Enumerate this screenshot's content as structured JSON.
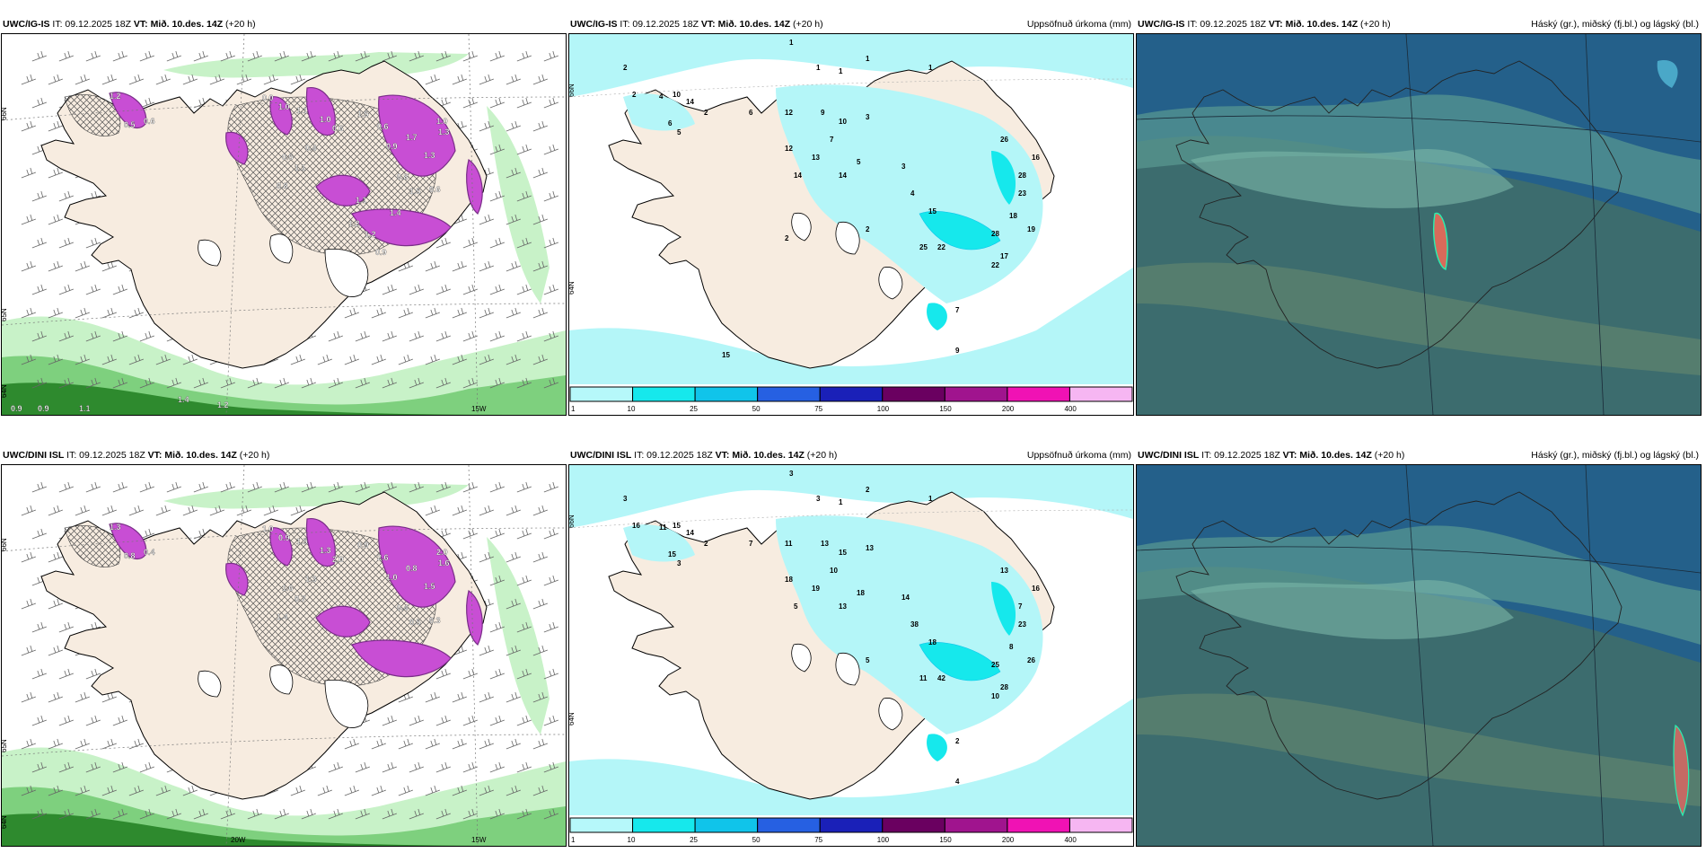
{
  "panels": [
    {
      "id": "p1",
      "header": {
        "source": "UWC/IG-IS",
        "it": "IT: 09.12.2025 18Z",
        "vt": "VT: Mið. 10.des. 14Z",
        "lead": "(+20 h)",
        "right": ""
      },
      "type": "wind",
      "lat_labels": [
        "66N",
        "65N",
        "64N"
      ],
      "lon_labels": [
        "15W"
      ],
      "values": [
        "1.2",
        "0.6",
        "0.5",
        "0.0",
        "1.0",
        "1.1",
        "1.0",
        "0.6",
        "0.5",
        "1.1",
        "0.8",
        "0.4",
        "1.5",
        "0.6",
        "0.9",
        "1.7",
        "1.0",
        "1.3",
        "1.3",
        "0.8",
        "0.6",
        "1.5",
        "1.1",
        "1.4",
        "1.2",
        "1.2",
        "0.9",
        "0.9",
        "0.9",
        "1.1",
        "1.4",
        "1.2"
      ]
    },
    {
      "id": "p2",
      "header": {
        "source": "UWC/IG-IS",
        "it": "IT: 09.12.2025 18Z",
        "vt": "VT: Mið. 10.des. 14Z",
        "lead": "(+20 h)",
        "right": "Uppsöfnuð úrkoma (mm)"
      },
      "type": "precip",
      "lat_labels": [
        "66N",
        "64N"
      ],
      "values": [
        "2",
        "1",
        "1",
        "1",
        "1",
        "1",
        "2",
        "10",
        "14",
        "4",
        "6",
        "5",
        "2",
        "6",
        "12",
        "9",
        "10",
        "3",
        "7",
        "12",
        "13",
        "5",
        "14",
        "14",
        "3",
        "4",
        "15",
        "22",
        "25",
        "23",
        "19",
        "17",
        "28",
        "26",
        "16",
        "28",
        "18",
        "22",
        "7",
        "9",
        "2",
        "15",
        "2"
      ]
    },
    {
      "id": "p3",
      "header": {
        "source": "UWC/IG-IS",
        "it": "IT: 09.12.2025 18Z",
        "vt": "VT: Mið. 10.des. 14Z",
        "lead": "(+20 h)",
        "right": "Háský (gr.), miðský (fj.bl.) og lágský (bl.)"
      },
      "type": "cloud"
    },
    {
      "id": "p4",
      "header": {
        "source": "UWC/DINI ISL",
        "it": "IT: 09.12.2025 18Z",
        "vt": "VT: Mið. 10.des. 14Z",
        "lead": "(+20 h)",
        "right": ""
      },
      "type": "wind",
      "lat_labels": [
        "66N",
        "65N",
        "64N"
      ],
      "lon_labels": [
        "20W",
        "15W"
      ],
      "values": [
        "1.3",
        "0.4",
        "0.8",
        "1.0",
        "0.9",
        "1.5",
        "1.3",
        "2.0",
        "1.6",
        "0.7",
        "1.4",
        "1.3",
        "0.9",
        "2.6",
        "1.0",
        "0.8",
        "2.0",
        "1.6",
        "1.5",
        "0.4",
        "0.3",
        "0.5"
      ]
    },
    {
      "id": "p5",
      "header": {
        "source": "UWC/DINI ISL",
        "it": "IT: 09.12.2025 18Z",
        "vt": "VT: Mið. 10.des. 14Z",
        "lead": "(+20 h)",
        "right": "Uppsöfnuð úrkoma (mm)"
      },
      "type": "precip",
      "lat_labels": [
        "66N",
        "64N"
      ],
      "values": [
        "3",
        "3",
        "3",
        "2",
        "1",
        "1",
        "16",
        "15",
        "14",
        "11",
        "15",
        "3",
        "2",
        "7",
        "11",
        "13",
        "15",
        "13",
        "10",
        "18",
        "19",
        "18",
        "5",
        "13",
        "14",
        "38",
        "18",
        "42",
        "11",
        "23",
        "26",
        "28",
        "25",
        "13",
        "16",
        "7",
        "8",
        "10",
        "2",
        "4",
        "5"
      ]
    },
    {
      "id": "p6",
      "header": {
        "source": "UWC/DINI ISL",
        "it": "IT: 09.12.2025 18Z",
        "vt": "VT: Mið. 10.des. 14Z",
        "lead": "(+20 h)",
        "right": "Háský (gr.), miðský (fj.bl.) og lágský (bl.)"
      },
      "type": "cloud"
    }
  ],
  "legend": {
    "labels": [
      "1",
      "10",
      "25",
      "50",
      "75",
      "100",
      "150",
      "200",
      "400"
    ],
    "colors": [
      "#b6f8fa",
      "#16e8ec",
      "#10c4ea",
      "#2660e2",
      "#1a20b8",
      "#6a0060",
      "#a0148e",
      "#f012b4",
      "#f6b6f2"
    ]
  },
  "colors": {
    "land": "#f7ece0",
    "precip_light": "#b4f6f8",
    "wind_light": "#c8f2c8",
    "wind_mid": "#7ed07e",
    "wind_dark": "#2e8a2e",
    "magenta": "#c84ed4",
    "cloud_sea": "#24608a",
    "cloud_land": "#3f6e6a"
  }
}
